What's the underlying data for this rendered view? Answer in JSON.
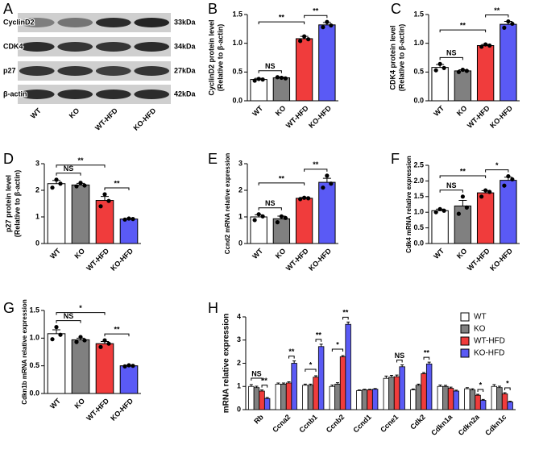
{
  "blot": {
    "label": "A",
    "proteins": [
      "CyclinD2",
      "CDK4",
      "p27",
      "β-actin"
    ],
    "sizes": [
      "33kDa",
      "34kDa",
      "27kDa",
      "42kDa"
    ],
    "lanes": [
      "WT",
      "KO",
      "WT-HFD",
      "KO-HFD"
    ]
  },
  "chart_data": [
    {
      "type": "bar",
      "label": "B",
      "ylabel": [
        "CyclinD2 protein level",
        "(Relative to β-actin)"
      ],
      "categories": [
        "WT",
        "KO",
        "WT-HFD",
        "KO-HFD"
      ],
      "colors": [
        "#ffffff",
        "#808080",
        "#f03c3c",
        "#5a5af5"
      ],
      "values": [
        0.37,
        0.4,
        1.08,
        1.32
      ],
      "errors": [
        0.02,
        0.01,
        0.04,
        0.04
      ],
      "points": [
        [
          0.35,
          0.38,
          0.37
        ],
        [
          0.41,
          0.4,
          0.39
        ],
        [
          1.04,
          1.12,
          1.07
        ],
        [
          1.28,
          1.37,
          1.31
        ]
      ],
      "ylim": [
        0,
        1.5
      ],
      "yticks": [
        {
          "value": 0,
          "label": "0.0"
        },
        0.5,
        {
          "value": 1,
          "label": "1.0"
        },
        1.5
      ],
      "annotations": [
        "NS",
        "**",
        "**"
      ]
    },
    {
      "type": "bar",
      "label": "C",
      "ylabel": [
        "CDK4 protein level",
        "(Relative to β-actin)"
      ],
      "categories": [
        "WT",
        "KO",
        "WT-HFD",
        "KO-HFD"
      ],
      "colors": [
        "#ffffff",
        "#808080",
        "#f03c3c",
        "#5a5af5"
      ],
      "values": [
        0.58,
        0.52,
        0.96,
        1.33
      ],
      "errors": [
        0.05,
        0.02,
        0.02,
        0.05
      ],
      "points": [
        [
          0.53,
          0.64,
          0.57
        ],
        [
          0.5,
          0.54,
          0.52
        ],
        [
          0.94,
          0.98,
          0.96
        ],
        [
          1.27,
          1.38,
          1.34
        ]
      ],
      "ylim": [
        0,
        1.5
      ],
      "yticks": [
        {
          "value": 0,
          "label": "0.0"
        },
        0.5,
        {
          "value": 1,
          "label": "1.0"
        },
        1.5
      ],
      "annotations": [
        "NS",
        "**",
        "**"
      ]
    },
    {
      "type": "bar",
      "label": "D",
      "ylabel": [
        "p27 protein level",
        "(Relative to β-actin)"
      ],
      "categories": [
        "WT",
        "KO",
        "WT-HFD",
        "KO-HFD"
      ],
      "colors": [
        "#ffffff",
        "#808080",
        "#f03c3c",
        "#5a5af5"
      ],
      "values": [
        2.25,
        2.2,
        1.62,
        0.92
      ],
      "errors": [
        0.12,
        0.06,
        0.15,
        0.02
      ],
      "points": [
        [
          2.1,
          2.4,
          2.25
        ],
        [
          2.15,
          2.28,
          2.18
        ],
        [
          1.4,
          1.85,
          1.6
        ],
        [
          0.9,
          0.94,
          0.92
        ]
      ],
      "ylim": [
        0,
        3
      ],
      "yticks": [
        0,
        1,
        2,
        3
      ],
      "annotations": [
        "NS",
        "**",
        "**"
      ]
    },
    {
      "type": "bar",
      "label": "E",
      "ylabel": "Ccnd2 mRNA relative expression",
      "categories": [
        "WT",
        "KO",
        "WT-HFD",
        "KO-HFD"
      ],
      "colors": [
        "#ffffff",
        "#808080",
        "#f03c3c",
        "#5a5af5"
      ],
      "values": [
        1.0,
        0.93,
        1.7,
        2.3
      ],
      "errors": [
        0.08,
        0.1,
        0.03,
        0.15
      ],
      "points": [
        [
          0.88,
          1.1,
          1.02
        ],
        [
          0.8,
          1.02,
          0.96
        ],
        [
          1.67,
          1.72,
          1.7
        ],
        [
          2.1,
          2.55,
          2.25
        ]
      ],
      "ylim": [
        0,
        3
      ],
      "yticks": [
        0,
        1,
        2,
        3
      ],
      "annotations": [
        "NS",
        "**",
        "**"
      ]
    },
    {
      "type": "bar",
      "label": "F",
      "ylabel": "Cdk4 mRNA relative expression",
      "categories": [
        "WT",
        "KO",
        "WT-HFD",
        "KO-HFD"
      ],
      "colors": [
        "#ffffff",
        "#808080",
        "#f03c3c",
        "#5a5af5"
      ],
      "values": [
        1.05,
        1.2,
        1.62,
        2.02
      ],
      "errors": [
        0.05,
        0.18,
        0.07,
        0.1
      ],
      "points": [
        [
          1.0,
          1.1,
          1.05
        ],
        [
          0.95,
          1.5,
          1.15
        ],
        [
          1.5,
          1.7,
          1.65
        ],
        [
          1.85,
          2.15,
          2.05
        ]
      ],
      "ylim": [
        0,
        2.5
      ],
      "yticks": [
        {
          "value": 0,
          "label": "0.0"
        },
        0.5,
        {
          "value": 1,
          "label": "1.0"
        },
        1.5,
        {
          "value": 2,
          "label": "2.0"
        },
        2.5
      ],
      "annotations": [
        "NS",
        "**",
        "*"
      ]
    },
    {
      "type": "bar",
      "label": "G",
      "ylabel": "Cdkn1b mRNA relative expression",
      "categories": [
        "WT",
        "KO",
        "WT-HFD",
        "KO-HFD"
      ],
      "colors": [
        "#ffffff",
        "#808080",
        "#f03c3c",
        "#5a5af5"
      ],
      "values": [
        1.08,
        0.97,
        0.9,
        0.5
      ],
      "errors": [
        0.07,
        0.03,
        0.04,
        0.01
      ],
      "points": [
        [
          0.98,
          1.2,
          1.06
        ],
        [
          0.93,
          1.02,
          0.96
        ],
        [
          0.84,
          0.96,
          0.9
        ],
        [
          0.49,
          0.51,
          0.5
        ]
      ],
      "ylim": [
        0,
        1.5
      ],
      "yticks": [
        {
          "value": 0,
          "label": "0.0"
        },
        0.5,
        {
          "value": 1,
          "label": "1.0"
        },
        1.5
      ],
      "annotations": [
        "NS",
        "*",
        "**"
      ]
    },
    {
      "type": "grouped_bar",
      "label": "H",
      "ylabel": "mRNA relative expression",
      "categories": [
        "Rb",
        "Ccna2",
        "Ccnb1",
        "Ccnb2",
        "Ccnd1",
        "Ccne1",
        "Cdk2",
        "Cdkn1a",
        "Cdkn2a",
        "Cdkn1c"
      ],
      "series": [
        {
          "name": "WT",
          "color": "#ffffff",
          "values": [
            1.0,
            1.1,
            1.05,
            1.0,
            0.82,
            1.35,
            0.85,
            1.0,
            0.9,
            1.0
          ],
          "errors": [
            0.08,
            0.05,
            0.05,
            0.06,
            0.03,
            0.1,
            0.04,
            0.06,
            0.05,
            0.08
          ]
        },
        {
          "name": "KO",
          "color": "#808080",
          "values": [
            0.95,
            1.1,
            1.05,
            1.1,
            0.85,
            1.4,
            1.05,
            1.0,
            0.85,
            0.95
          ],
          "errors": [
            0.06,
            0.05,
            0.05,
            0.06,
            0.03,
            0.08,
            0.05,
            0.05,
            0.05,
            0.06
          ]
        },
        {
          "name": "WT-HFD",
          "color": "#f03c3c",
          "values": [
            0.8,
            1.15,
            1.4,
            2.28,
            0.85,
            1.42,
            1.55,
            0.92,
            0.62,
            0.68
          ],
          "errors": [
            0.05,
            0.05,
            0.06,
            0.05,
            0.03,
            0.07,
            0.05,
            0.05,
            0.04,
            0.05
          ]
        },
        {
          "name": "KO-HFD",
          "color": "#5a5af5",
          "values": [
            0.48,
            2.0,
            2.72,
            3.68,
            0.88,
            1.85,
            1.97,
            0.8,
            0.4,
            0.33
          ],
          "errors": [
            0.04,
            0.1,
            0.1,
            0.1,
            0.03,
            0.08,
            0.08,
            0.04,
            0.04,
            0.03
          ]
        }
      ],
      "significance": [
        [
          "NS",
          "**"
        ],
        [
          "**"
        ],
        [
          "*",
          "**"
        ],
        [
          "*",
          "**"
        ],
        [],
        [
          "NS"
        ],
        [
          "**"
        ],
        [],
        [
          "*"
        ],
        [
          "*"
        ]
      ],
      "ylim": [
        0,
        4
      ],
      "yticks": [
        0,
        1,
        2,
        3,
        4
      ],
      "legend": "top-right"
    }
  ]
}
